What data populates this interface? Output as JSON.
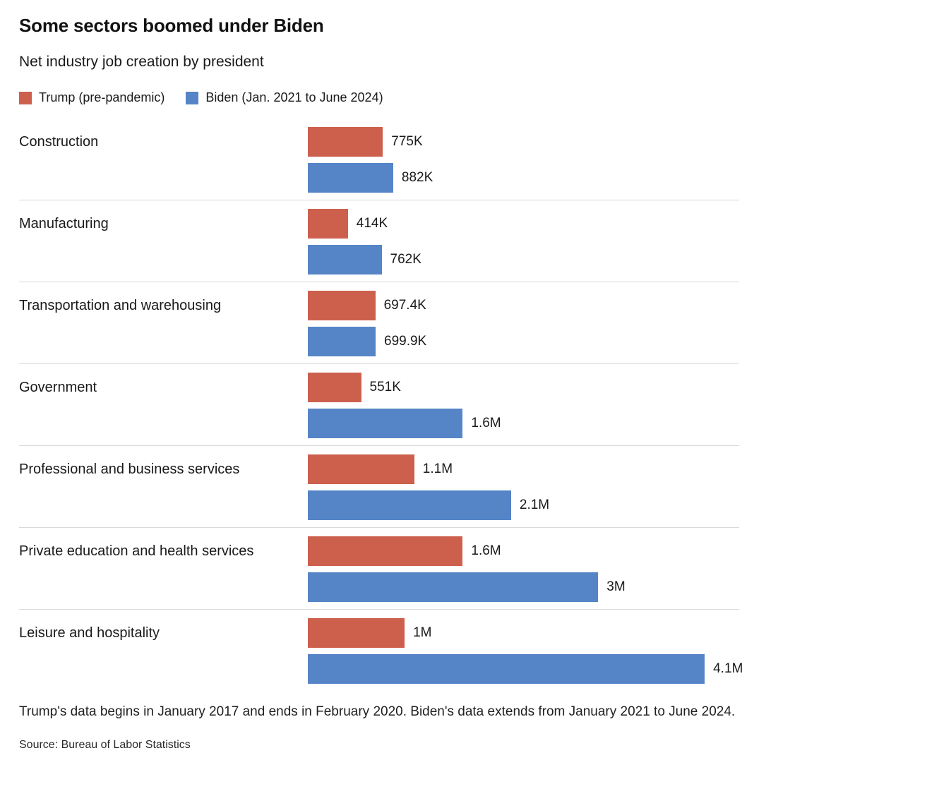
{
  "chart_data": {
    "type": "bar",
    "orientation": "horizontal",
    "title": "Some sectors boomed under Biden",
    "subtitle": "Net industry job creation by president",
    "legend_position": "top",
    "grid": false,
    "x_axis": {
      "visible": false,
      "min_thousands": 0,
      "max_thousands": 4460
    },
    "categories": [
      "Construction",
      "Manufacturing",
      "Transportation and warehousing",
      "Government",
      "Professional and business services",
      "Private education and health services",
      "Leisure and hospitality"
    ],
    "series": [
      {
        "name": "Trump (pre-pandemic)",
        "color": "#cd604d",
        "values_thousands": [
          775,
          414,
          697.4,
          551,
          1100,
          1600,
          1000
        ],
        "value_labels": [
          "775K",
          "414K",
          "697.4K",
          "551K",
          "1.1M",
          "1.6M",
          "1M"
        ]
      },
      {
        "name": "Biden (Jan. 2021 to June 2024)",
        "color": "#5585c6",
        "values_thousands": [
          882,
          762,
          699.9,
          1600,
          2100,
          3000,
          4100
        ],
        "value_labels": [
          "882K",
          "762K",
          "699.9K",
          "1.6M",
          "2.1M",
          "3M",
          "4.1M"
        ]
      }
    ],
    "note": "Trump's data begins in January 2017 and ends in February 2020. Biden's data extends from January 2021 to June 2024.",
    "source": "Source: Bureau of Labor Statistics"
  }
}
